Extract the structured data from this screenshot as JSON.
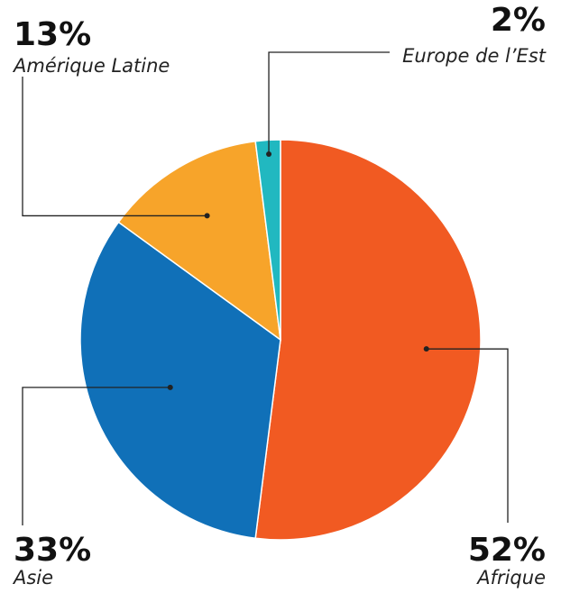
{
  "chart_data": {
    "type": "pie",
    "categories": [
      "Afrique",
      "Asie",
      "Amérique Latine",
      "Europe de l’Est"
    ],
    "values": [
      52,
      33,
      13,
      2
    ],
    "value_labels": [
      "52%",
      "33%",
      "13%",
      "2%"
    ],
    "colors": [
      "#f15a22",
      "#1070b8",
      "#f7a42a",
      "#21b8c0"
    ]
  }
}
